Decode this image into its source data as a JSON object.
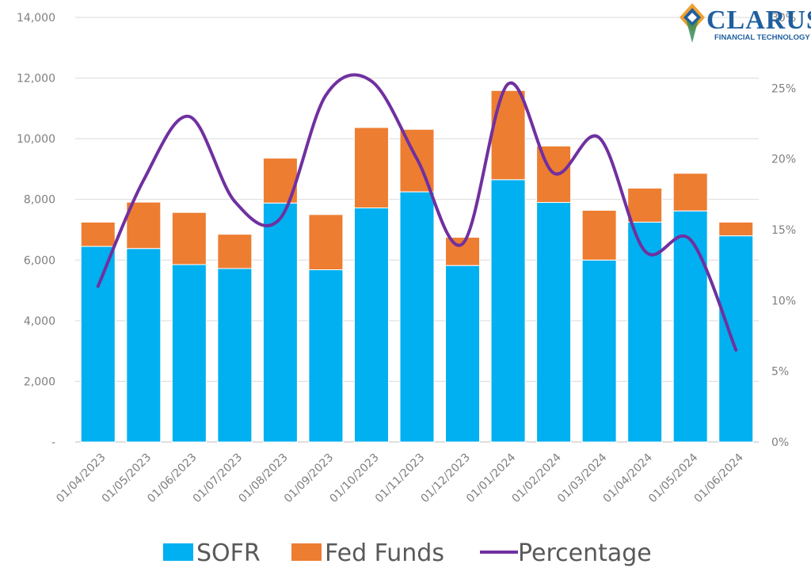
{
  "chart_data": {
    "type": "bar",
    "stacked": true,
    "categories": [
      "01/04/2023",
      "01/05/2023",
      "01/06/2023",
      "01/07/2023",
      "01/08/2023",
      "01/09/2023",
      "01/10/2023",
      "01/11/2023",
      "01/12/2023",
      "01/01/2024",
      "01/02/2024",
      "01/03/2024",
      "01/04/2024",
      "01/05/2024",
      "01/06/2024"
    ],
    "series": [
      {
        "name": "SOFR",
        "type": "bar",
        "axis": "left",
        "color": "#00b0f0",
        "values": [
          6450,
          6380,
          5850,
          5720,
          7880,
          5680,
          7720,
          8250,
          5820,
          8650,
          7900,
          6000,
          7250,
          7620,
          6800
        ]
      },
      {
        "name": "Fed Funds",
        "type": "bar",
        "axis": "left",
        "color": "#ed7d31",
        "values": [
          800,
          1530,
          1720,
          1130,
          1480,
          1820,
          2650,
          2060,
          930,
          2940,
          1860,
          1640,
          1120,
          1240,
          450
        ]
      },
      {
        "name": "Percentage",
        "type": "line",
        "axis": "right",
        "color": "#7030a0",
        "values": [
          11,
          18.5,
          23,
          17,
          15.8,
          24.5,
          25.5,
          20,
          14,
          25.3,
          19,
          21.5,
          13.5,
          14.3,
          6.5
        ]
      }
    ],
    "yticks_left": [
      "-",
      "2,000",
      "4,000",
      "6,000",
      "8,000",
      "10,000",
      "12,000",
      "14,000"
    ],
    "ylim_left": [
      0,
      14000
    ],
    "yticks_right": [
      "0%",
      "5%",
      "10%",
      "15%",
      "20%",
      "25%",
      "30%"
    ],
    "ylim_right": [
      0,
      30
    ],
    "grid": true,
    "legend_position": "bottom",
    "logo": {
      "word": "CLARUS",
      "sub": "FINANCIAL TECHNOLOGY"
    }
  }
}
